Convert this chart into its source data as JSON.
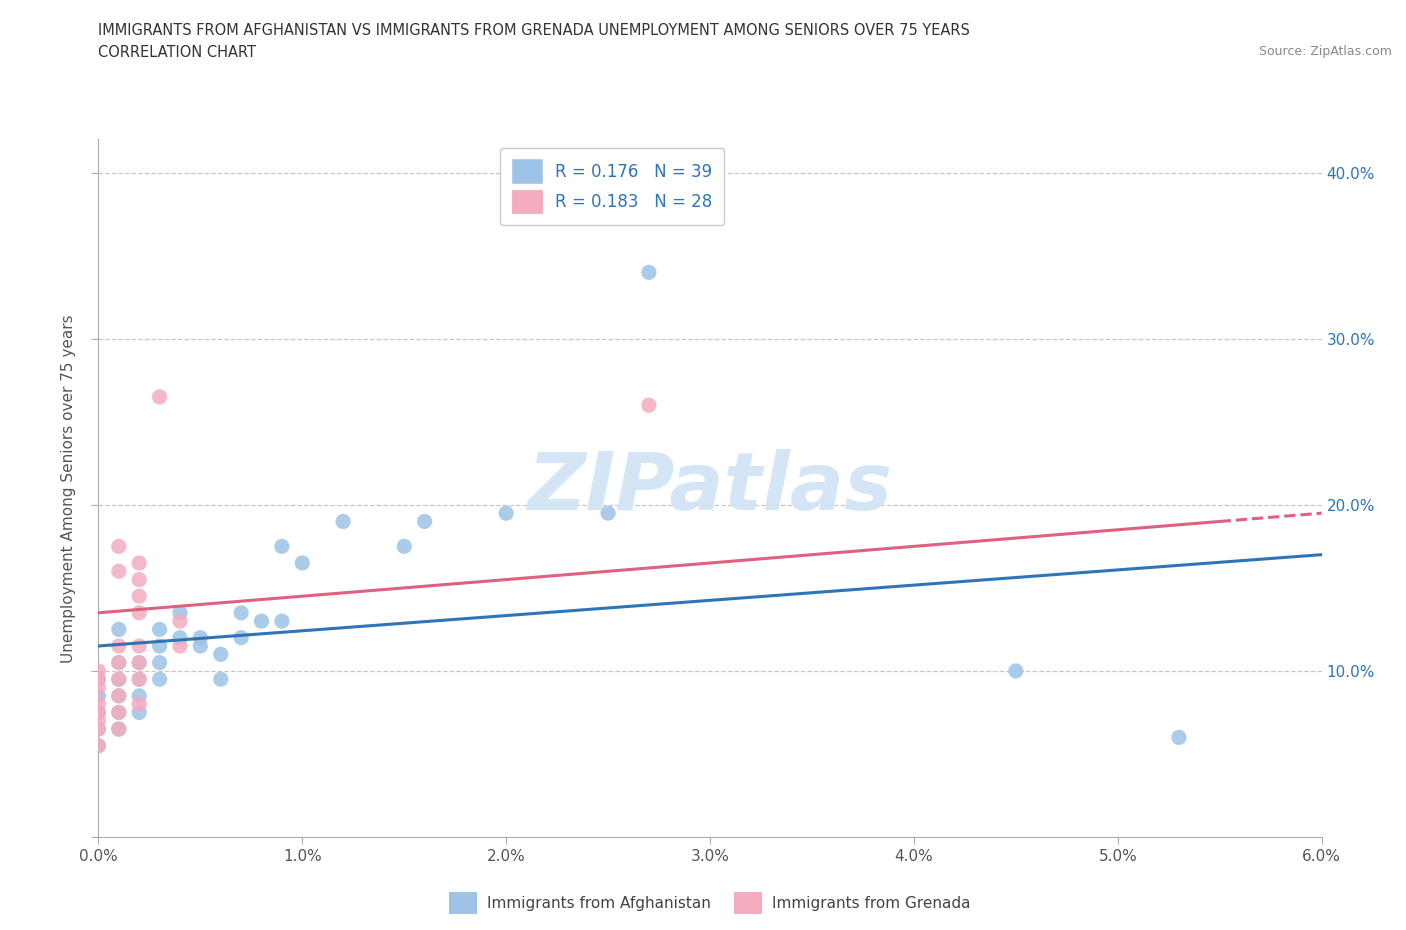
{
  "title_line1": "IMMIGRANTS FROM AFGHANISTAN VS IMMIGRANTS FROM GRENADA UNEMPLOYMENT AMONG SENIORS OVER 75 YEARS",
  "title_line2": "CORRELATION CHART",
  "source_text": "Source: ZipAtlas.com",
  "ylabel": "Unemployment Among Seniors over 75 years",
  "xlim": [
    0.0,
    0.06
  ],
  "ylim": [
    0.0,
    0.42
  ],
  "xticks": [
    0.0,
    0.01,
    0.02,
    0.03,
    0.04,
    0.05,
    0.06
  ],
  "xticklabels": [
    "0.0%",
    "1.0%",
    "2.0%",
    "3.0%",
    "4.0%",
    "5.0%",
    "6.0%"
  ],
  "yticks": [
    0.0,
    0.1,
    0.2,
    0.3,
    0.4
  ],
  "afghanistan_color": "#9dc3e6",
  "grenada_color": "#f4acbf",
  "afghanistan_trend_color": "#2e75b6",
  "grenada_trend_color": "#e06080",
  "grid_color": "#c8c8c8",
  "legend_text_color": "#2e75b6",
  "afghanistan_label": "Immigrants from Afghanistan",
  "grenada_label": "Immigrants from Grenada",
  "watermark_text": "ZIPatlas",
  "watermark_color": "#d8e8f5",
  "legend_r_afg": "R = 0.176",
  "legend_n_afg": "N = 39",
  "legend_r_grn": "R = 0.183",
  "legend_n_grn": "N = 28",
  "afghanistan_points": [
    [
      0.0,
      0.055
    ],
    [
      0.0,
      0.065
    ],
    [
      0.0,
      0.075
    ],
    [
      0.0,
      0.085
    ],
    [
      0.0,
      0.095
    ],
    [
      0.001,
      0.065
    ],
    [
      0.001,
      0.075
    ],
    [
      0.001,
      0.085
    ],
    [
      0.001,
      0.095
    ],
    [
      0.001,
      0.105
    ],
    [
      0.001,
      0.125
    ],
    [
      0.002,
      0.075
    ],
    [
      0.002,
      0.085
    ],
    [
      0.002,
      0.095
    ],
    [
      0.002,
      0.105
    ],
    [
      0.003,
      0.095
    ],
    [
      0.003,
      0.105
    ],
    [
      0.003,
      0.115
    ],
    [
      0.003,
      0.125
    ],
    [
      0.004,
      0.12
    ],
    [
      0.004,
      0.135
    ],
    [
      0.005,
      0.115
    ],
    [
      0.005,
      0.12
    ],
    [
      0.006,
      0.095
    ],
    [
      0.006,
      0.11
    ],
    [
      0.007,
      0.12
    ],
    [
      0.007,
      0.135
    ],
    [
      0.008,
      0.13
    ],
    [
      0.009,
      0.13
    ],
    [
      0.009,
      0.175
    ],
    [
      0.01,
      0.165
    ],
    [
      0.012,
      0.19
    ],
    [
      0.015,
      0.175
    ],
    [
      0.016,
      0.19
    ],
    [
      0.02,
      0.195
    ],
    [
      0.025,
      0.195
    ],
    [
      0.027,
      0.34
    ],
    [
      0.045,
      0.1
    ],
    [
      0.053,
      0.06
    ]
  ],
  "grenada_points": [
    [
      0.0,
      0.055
    ],
    [
      0.0,
      0.065
    ],
    [
      0.0,
      0.07
    ],
    [
      0.0,
      0.075
    ],
    [
      0.0,
      0.08
    ],
    [
      0.0,
      0.09
    ],
    [
      0.0,
      0.095
    ],
    [
      0.0,
      0.1
    ],
    [
      0.001,
      0.065
    ],
    [
      0.001,
      0.075
    ],
    [
      0.001,
      0.085
    ],
    [
      0.001,
      0.095
    ],
    [
      0.001,
      0.105
    ],
    [
      0.001,
      0.115
    ],
    [
      0.001,
      0.16
    ],
    [
      0.001,
      0.175
    ],
    [
      0.002,
      0.08
    ],
    [
      0.002,
      0.095
    ],
    [
      0.002,
      0.105
    ],
    [
      0.002,
      0.115
    ],
    [
      0.002,
      0.135
    ],
    [
      0.002,
      0.145
    ],
    [
      0.002,
      0.155
    ],
    [
      0.002,
      0.165
    ],
    [
      0.003,
      0.265
    ],
    [
      0.004,
      0.115
    ],
    [
      0.004,
      0.13
    ],
    [
      0.027,
      0.26
    ]
  ]
}
